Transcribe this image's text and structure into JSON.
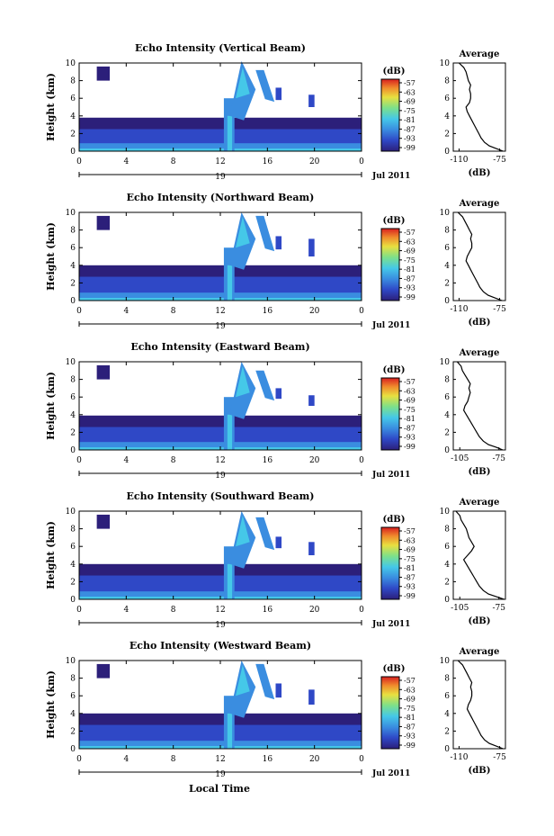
{
  "figure": {
    "xlabel": "Local Time",
    "date_label": "Jul 2011",
    "day_label": "19",
    "colorbar_unit": "(dB)",
    "avg_title": "Average",
    "avg_xlabel": "(dB)"
  },
  "chart_data": [
    {
      "type": "heatmap",
      "title": "Echo Intensity (Vertical Beam)",
      "ylabel": "Height (km)",
      "xlim": [
        0,
        24
      ],
      "ylim": [
        0,
        10
      ],
      "xticks": [
        "0",
        "4",
        "8",
        "12",
        "16",
        "20",
        "0"
      ],
      "yticks": [
        "0",
        "2",
        "4",
        "6",
        "8",
        "10"
      ],
      "colorbar": {
        "label": "(dB)",
        "ticks": [
          "-57",
          "-63",
          "-69",
          "-75",
          "-81",
          "-87",
          "-93",
          "-99"
        ]
      },
      "colors": [
        "#2c1f7a",
        "#2f48c6",
        "#3a8de0",
        "#45c8e8",
        "#7de08a",
        "#e8e040",
        "#f08a2c",
        "#d82020"
      ],
      "cloud_tops_km": [
        2.5,
        10.2,
        9.2,
        4.2,
        7.2,
        5.9
      ],
      "profile": {
        "title": "Average",
        "xlabel": "(dB)",
        "xticks": [
          "-110",
          "-75"
        ],
        "xlim": [
          -115,
          -70
        ],
        "height_km": [
          0,
          0.3,
          0.6,
          1,
          1.5,
          2,
          2.5,
          3,
          3.5,
          4,
          4.5,
          5,
          5.5,
          6,
          6.5,
          7,
          7.5,
          8,
          8.5,
          9,
          9.5,
          10
        ],
        "db": [
          -72,
          -78,
          -84,
          -88,
          -91,
          -93,
          -95,
          -97,
          -99,
          -101,
          -103,
          -104,
          -101,
          -100,
          -100,
          -101,
          -100,
          -102,
          -103,
          -104,
          -106,
          -110
        ]
      }
    },
    {
      "type": "heatmap",
      "title": "Echo Intensity (Northward Beam)",
      "ylabel": "Height (km)",
      "xlim": [
        0,
        24
      ],
      "ylim": [
        0,
        10
      ],
      "xticks": [
        "0",
        "4",
        "8",
        "12",
        "16",
        "20",
        "0"
      ],
      "yticks": [
        "0",
        "2",
        "4",
        "6",
        "8",
        "10"
      ],
      "colorbar": {
        "label": "(dB)",
        "ticks": [
          "-57",
          "-63",
          "-69",
          "-75",
          "-81",
          "-87",
          "-93",
          "-99"
        ]
      },
      "colors": [
        "#2c1f7a",
        "#2f48c6",
        "#3a8de0",
        "#45c8e8",
        "#7de08a",
        "#e8e040",
        "#f08a2c",
        "#d82020"
      ],
      "cloud_tops_km": [
        2.7,
        10.0,
        9.6,
        4.3,
        7.3,
        6.5
      ],
      "profile": {
        "title": "Average",
        "xlabel": "(dB)",
        "xticks": [
          "-110",
          "-75"
        ],
        "xlim": [
          -115,
          -70
        ],
        "height_km": [
          0,
          0.3,
          0.6,
          1,
          1.5,
          2,
          2.5,
          3,
          3.5,
          4,
          4.5,
          5,
          5.5,
          6,
          6.5,
          7,
          7.5,
          8,
          8.5,
          9,
          9.5,
          10
        ],
        "db": [
          -73,
          -79,
          -85,
          -89,
          -92,
          -94,
          -96,
          -98,
          -100,
          -102,
          -104,
          -103,
          -101,
          -99,
          -99,
          -100,
          -99,
          -101,
          -103,
          -105,
          -107,
          -111
        ]
      }
    },
    {
      "type": "heatmap",
      "title": "Echo Intensity (Eastward Beam)",
      "ylabel": "Height (km)",
      "xlim": [
        0,
        24
      ],
      "ylim": [
        0,
        10
      ],
      "xticks": [
        "0",
        "4",
        "8",
        "12",
        "16",
        "20",
        "0"
      ],
      "yticks": [
        "0",
        "2",
        "4",
        "6",
        "8",
        "10"
      ],
      "colorbar": {
        "label": "(dB)",
        "ticks": [
          "-57",
          "-63",
          "-69",
          "-75",
          "-81",
          "-87",
          "-93",
          "-99"
        ]
      },
      "colors": [
        "#2c1f7a",
        "#2f48c6",
        "#3a8de0",
        "#45c8e8",
        "#7de08a",
        "#e8e040",
        "#f08a2c",
        "#d82020"
      ],
      "cloud_tops_km": [
        2.6,
        10.0,
        9.0,
        4.4,
        7.0,
        5.7
      ],
      "profile": {
        "title": "Average",
        "xlabel": "(dB)",
        "xticks": [
          "-105",
          "-75"
        ],
        "xlim": [
          -110,
          -70
        ],
        "height_km": [
          0,
          0.3,
          0.6,
          1,
          1.5,
          2,
          2.5,
          3,
          3.5,
          4,
          4.5,
          5,
          5.5,
          6,
          6.5,
          7,
          7.5,
          8,
          8.5,
          9,
          9.5,
          10
        ],
        "db": [
          -72,
          -77,
          -83,
          -87,
          -90,
          -92,
          -94,
          -96,
          -98,
          -100,
          -102,
          -101,
          -99,
          -98,
          -97,
          -98,
          -97,
          -99,
          -101,
          -103,
          -104,
          -107
        ]
      }
    },
    {
      "type": "heatmap",
      "title": "Echo Intensity (Southward Beam)",
      "ylabel": "Height (km)",
      "xlim": [
        0,
        24
      ],
      "ylim": [
        0,
        10
      ],
      "xticks": [
        "0",
        "4",
        "8",
        "12",
        "16",
        "20",
        "0"
      ],
      "yticks": [
        "0",
        "2",
        "4",
        "6",
        "8",
        "10"
      ],
      "colorbar": {
        "label": "(dB)",
        "ticks": [
          "-57",
          "-63",
          "-69",
          "-75",
          "-81",
          "-87",
          "-93",
          "-99"
        ]
      },
      "colors": [
        "#2c1f7a",
        "#2f48c6",
        "#3a8de0",
        "#45c8e8",
        "#7de08a",
        "#e8e040",
        "#f08a2c",
        "#d82020"
      ],
      "cloud_tops_km": [
        2.7,
        10.0,
        9.3,
        4.5,
        7.1,
        6.0
      ],
      "profile": {
        "title": "Average",
        "xlabel": "(dB)",
        "xticks": [
          "-105",
          "-75"
        ],
        "xlim": [
          -110,
          -70
        ],
        "height_km": [
          0,
          0.3,
          0.6,
          1,
          1.5,
          2,
          2.5,
          3,
          3.5,
          4,
          4.5,
          5,
          5.5,
          6,
          6.5,
          7,
          7.5,
          8,
          8.5,
          9,
          9.5,
          10
        ],
        "db": [
          -71,
          -77,
          -83,
          -87,
          -90,
          -92,
          -94,
          -96,
          -98,
          -100,
          -102,
          -99,
          -96,
          -94,
          -96,
          -98,
          -99,
          -100,
          -102,
          -104,
          -105,
          -108
        ]
      }
    },
    {
      "type": "heatmap",
      "title": "Echo Intensity (Westward Beam)",
      "ylabel": "Height (km)",
      "xlim": [
        0,
        24
      ],
      "ylim": [
        0,
        10
      ],
      "xticks": [
        "0",
        "4",
        "8",
        "12",
        "16",
        "20",
        "0"
      ],
      "yticks": [
        "0",
        "2",
        "4",
        "6",
        "8",
        "10"
      ],
      "colorbar": {
        "label": "(dB)",
        "ticks": [
          "-57",
          "-63",
          "-69",
          "-75",
          "-81",
          "-87",
          "-93",
          "-99"
        ]
      },
      "colors": [
        "#2c1f7a",
        "#2f48c6",
        "#3a8de0",
        "#45c8e8",
        "#7de08a",
        "#e8e040",
        "#f08a2c",
        "#d82020"
      ],
      "cloud_tops_km": [
        2.7,
        10.0,
        9.6,
        4.2,
        7.4,
        6.2
      ],
      "profile": {
        "title": "Average",
        "xlabel": "(dB)",
        "xticks": [
          "-110",
          "-75"
        ],
        "xlim": [
          -115,
          -70
        ],
        "height_km": [
          0,
          0.3,
          0.6,
          1,
          1.5,
          2,
          2.5,
          3,
          3.5,
          4,
          4.5,
          5,
          5.5,
          6,
          6.5,
          7,
          7.5,
          8,
          8.5,
          9,
          9.5,
          10
        ],
        "db": [
          -72,
          -78,
          -84,
          -88,
          -91,
          -93,
          -95,
          -97,
          -99,
          -101,
          -103,
          -102,
          -100,
          -99,
          -99,
          -100,
          -99,
          -101,
          -103,
          -105,
          -107,
          -111
        ]
      }
    }
  ]
}
